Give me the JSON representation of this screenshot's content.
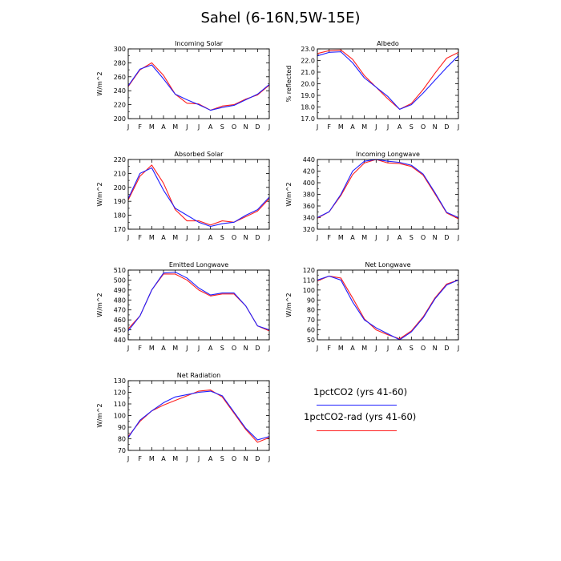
{
  "title": "Sahel (6-16N,5W-15E)",
  "months": [
    "J",
    "F",
    "M",
    "A",
    "M",
    "J",
    "J",
    "A",
    "S",
    "O",
    "N",
    "D",
    "J"
  ],
  "legend": {
    "items": [
      {
        "label": "1pctCO2 (yrs 41-60)",
        "color": "#1f1fff"
      },
      {
        "label": "1pctCO2-rad (yrs 41-60)",
        "color": "#ff1f1f"
      }
    ]
  },
  "chart_data": [
    {
      "type": "line",
      "title": "Incoming Solar",
      "ylabel": "W/m^2",
      "ylim": [
        200,
        300
      ],
      "yticks": [
        200,
        220,
        240,
        260,
        280,
        300
      ],
      "categories": [
        "J",
        "F",
        "M",
        "A",
        "M",
        "J",
        "J",
        "A",
        "S",
        "O",
        "N",
        "D",
        "J"
      ],
      "series": [
        {
          "name": "1pctCO2 (yrs 41-60)",
          "values": [
            247,
            271,
            277,
            257,
            235,
            227,
            220,
            212,
            216,
            219,
            227,
            235,
            249
          ]
        },
        {
          "name": "1pctCO2-rad (yrs 41-60)",
          "values": [
            246,
            270,
            280,
            262,
            235,
            222,
            221,
            212,
            218,
            220,
            228,
            234,
            248
          ]
        }
      ]
    },
    {
      "type": "line",
      "title": "Albedo",
      "ylabel": "% reflected",
      "ylim": [
        17,
        23
      ],
      "yticks": [
        17,
        18,
        19,
        20,
        21,
        22,
        23
      ],
      "ytick_labels": [
        "17.0",
        "18.0",
        "19.0",
        "20.0",
        "21.0",
        "22.0",
        "23.0"
      ],
      "categories": [
        "J",
        "F",
        "M",
        "A",
        "M",
        "J",
        "J",
        "A",
        "S",
        "O",
        "N",
        "D",
        "J"
      ],
      "series": [
        {
          "name": "1pctCO2 (yrs 41-60)",
          "values": [
            22.4,
            22.7,
            22.75,
            21.8,
            20.5,
            19.7,
            18.9,
            17.8,
            18.2,
            19.2,
            20.3,
            21.4,
            22.4
          ]
        },
        {
          "name": "1pctCO2-rad (yrs 41-60)",
          "values": [
            22.6,
            22.85,
            22.9,
            22.1,
            20.7,
            19.7,
            18.7,
            17.8,
            18.3,
            19.5,
            20.9,
            22.2,
            22.7
          ]
        }
      ]
    },
    {
      "type": "line",
      "title": "Absorbed Solar",
      "ylabel": "W/m^2",
      "ylim": [
        170,
        220
      ],
      "yticks": [
        170,
        180,
        190,
        200,
        210,
        220
      ],
      "categories": [
        "J",
        "F",
        "M",
        "A",
        "M",
        "J",
        "J",
        "A",
        "S",
        "O",
        "N",
        "D",
        "J"
      ],
      "series": [
        {
          "name": "1pctCO2 (yrs 41-60)",
          "values": [
            192,
            210,
            214,
            198,
            185,
            180,
            175,
            172,
            174,
            175,
            180,
            184,
            193
          ]
        },
        {
          "name": "1pctCO2-rad (yrs 41-60)",
          "values": [
            191,
            208,
            216,
            203,
            184,
            176,
            176,
            173,
            176,
            175,
            179,
            183,
            192
          ]
        }
      ]
    },
    {
      "type": "line",
      "title": "Incoming Longwave",
      "ylabel": "W/m^2",
      "ylim": [
        320,
        440
      ],
      "yticks": [
        320,
        340,
        360,
        380,
        400,
        420,
        440
      ],
      "categories": [
        "J",
        "F",
        "M",
        "A",
        "M",
        "J",
        "J",
        "A",
        "S",
        "O",
        "N",
        "D",
        "J"
      ],
      "series": [
        {
          "name": "1pctCO2 (yrs 41-60)",
          "values": [
            340,
            350,
            380,
            420,
            437,
            440,
            437,
            435,
            430,
            415,
            383,
            349,
            340
          ]
        },
        {
          "name": "1pctCO2-rad (yrs 41-60)",
          "values": [
            339,
            350,
            378,
            414,
            434,
            440,
            434,
            433,
            428,
            413,
            381,
            348,
            338
          ]
        }
      ]
    },
    {
      "type": "line",
      "title": "Emitted Longwave",
      "ylabel": "W/m^2",
      "ylim": [
        440,
        510
      ],
      "yticks": [
        440,
        450,
        460,
        470,
        480,
        490,
        500,
        510
      ],
      "categories": [
        "J",
        "F",
        "M",
        "A",
        "M",
        "J",
        "J",
        "A",
        "S",
        "O",
        "N",
        "D",
        "J"
      ],
      "series": [
        {
          "name": "1pctCO2 (yrs 41-60)",
          "values": [
            449,
            464,
            490,
            507,
            508,
            502,
            492,
            485,
            487,
            487,
            474,
            454,
            450
          ]
        },
        {
          "name": "1pctCO2-rad (yrs 41-60)",
          "values": [
            451,
            464,
            490,
            506,
            506,
            500,
            490,
            484,
            486,
            486,
            474,
            454,
            449
          ]
        }
      ]
    },
    {
      "type": "line",
      "title": "Net Longwave",
      "ylabel": "W/m^2",
      "ylim": [
        50,
        120
      ],
      "yticks": [
        50,
        60,
        70,
        80,
        90,
        100,
        110,
        120
      ],
      "categories": [
        "J",
        "F",
        "M",
        "A",
        "M",
        "J",
        "J",
        "A",
        "S",
        "O",
        "N",
        "D",
        "J"
      ],
      "series": [
        {
          "name": "1pctCO2 (yrs 41-60)",
          "values": [
            110,
            114,
            110,
            88,
            70,
            62,
            56,
            50,
            58,
            72,
            91,
            105,
            110
          ]
        },
        {
          "name": "1pctCO2-rad (yrs 41-60)",
          "values": [
            109,
            114,
            112,
            92,
            71,
            60,
            55,
            51,
            59,
            73,
            92,
            106,
            110
          ]
        }
      ]
    },
    {
      "type": "line",
      "title": "Net Radiation",
      "ylabel": "W/m^2",
      "ylim": [
        70,
        130
      ],
      "yticks": [
        70,
        80,
        90,
        100,
        110,
        120,
        130
      ],
      "categories": [
        "J",
        "F",
        "M",
        "A",
        "M",
        "J",
        "J",
        "A",
        "S",
        "O",
        "N",
        "D",
        "J"
      ],
      "series": [
        {
          "name": "1pctCO2 (yrs 41-60)",
          "values": [
            81,
            96,
            104,
            111,
            116,
            118,
            120,
            121,
            117,
            103,
            89,
            79,
            82
          ]
        },
        {
          "name": "1pctCO2-rad (yrs 41-60)",
          "values": [
            82,
            95,
            104,
            109,
            113,
            117,
            121,
            122,
            116,
            102,
            88,
            77,
            81
          ]
        }
      ]
    }
  ]
}
